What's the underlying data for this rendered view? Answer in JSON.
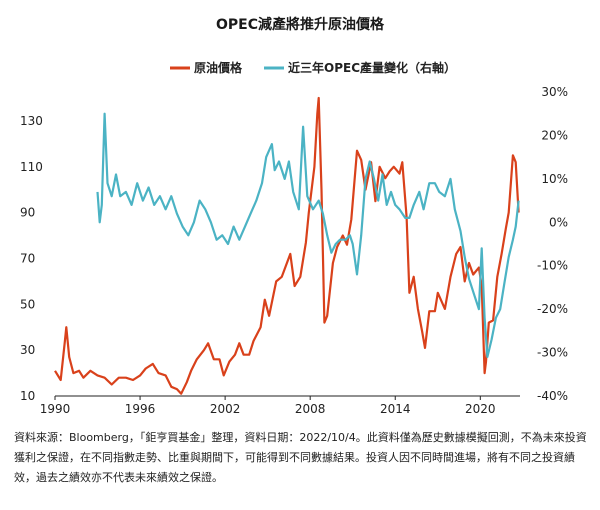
{
  "chart_data": {
    "type": "line",
    "title": "OPEC減產將推升原油價格",
    "legend_placement": "top-center",
    "x_ticks": [
      "1990",
      "1996",
      "2002",
      "2008",
      "2014",
      "2020"
    ],
    "xlim": [
      1990,
      2022.8
    ],
    "y_left": {
      "ticks": [
        "10",
        "30",
        "50",
        "70",
        "90",
        "110",
        "130"
      ],
      "ylim": [
        10,
        140
      ]
    },
    "y_right": {
      "ticks": [
        "-40%",
        "-30%",
        "-20%",
        "-10%",
        "0%",
        "10%",
        "20%",
        "30%"
      ],
      "ylim": [
        -40,
        30
      ]
    },
    "grid": false,
    "series": [
      {
        "name": "原油價格",
        "axis": "left",
        "color": "#d9411b",
        "points": [
          [
            1990.0,
            21
          ],
          [
            1990.4,
            17
          ],
          [
            1990.7,
            34
          ],
          [
            1990.8,
            40
          ],
          [
            1991.0,
            27
          ],
          [
            1991.3,
            20
          ],
          [
            1991.7,
            21
          ],
          [
            1992.0,
            18
          ],
          [
            1992.5,
            21
          ],
          [
            1993.0,
            19
          ],
          [
            1993.5,
            18
          ],
          [
            1994.0,
            15
          ],
          [
            1994.5,
            18
          ],
          [
            1995.0,
            18
          ],
          [
            1995.5,
            17
          ],
          [
            1996.0,
            19
          ],
          [
            1996.4,
            22
          ],
          [
            1996.9,
            24
          ],
          [
            1997.3,
            20
          ],
          [
            1997.8,
            19
          ],
          [
            1998.2,
            14
          ],
          [
            1998.6,
            13
          ],
          [
            1998.9,
            11
          ],
          [
            1999.3,
            16
          ],
          [
            1999.6,
            21
          ],
          [
            2000.0,
            26
          ],
          [
            2000.5,
            30
          ],
          [
            2000.8,
            33
          ],
          [
            2001.2,
            26
          ],
          [
            2001.6,
            26
          ],
          [
            2001.9,
            19
          ],
          [
            2002.3,
            25
          ],
          [
            2002.7,
            28
          ],
          [
            2003.0,
            33
          ],
          [
            2003.3,
            28
          ],
          [
            2003.7,
            28
          ],
          [
            2004.0,
            34
          ],
          [
            2004.5,
            40
          ],
          [
            2004.8,
            52
          ],
          [
            2005.1,
            45
          ],
          [
            2005.6,
            60
          ],
          [
            2006.0,
            62
          ],
          [
            2006.6,
            72
          ],
          [
            2006.9,
            58
          ],
          [
            2007.3,
            62
          ],
          [
            2007.7,
            77
          ],
          [
            2007.9,
            90
          ],
          [
            2008.3,
            110
          ],
          [
            2008.5,
            133
          ],
          [
            2008.6,
            140
          ],
          [
            2008.8,
            100
          ],
          [
            2009.0,
            42
          ],
          [
            2009.2,
            45
          ],
          [
            2009.6,
            68
          ],
          [
            2009.9,
            75
          ],
          [
            2010.3,
            80
          ],
          [
            2010.6,
            76
          ],
          [
            2010.9,
            87
          ],
          [
            2011.3,
            117
          ],
          [
            2011.6,
            113
          ],
          [
            2011.9,
            100
          ],
          [
            2012.3,
            112
          ],
          [
            2012.6,
            95
          ],
          [
            2012.9,
            110
          ],
          [
            2013.3,
            105
          ],
          [
            2013.6,
            108
          ],
          [
            2013.9,
            110
          ],
          [
            2014.3,
            107
          ],
          [
            2014.5,
            112
          ],
          [
            2014.8,
            88
          ],
          [
            2015.0,
            55
          ],
          [
            2015.3,
            62
          ],
          [
            2015.6,
            48
          ],
          [
            2015.9,
            38
          ],
          [
            2016.1,
            31
          ],
          [
            2016.4,
            47
          ],
          [
            2016.8,
            47
          ],
          [
            2017.0,
            55
          ],
          [
            2017.5,
            48
          ],
          [
            2017.9,
            62
          ],
          [
            2018.3,
            72
          ],
          [
            2018.6,
            75
          ],
          [
            2018.9,
            60
          ],
          [
            2019.2,
            68
          ],
          [
            2019.5,
            63
          ],
          [
            2019.9,
            66
          ],
          [
            2020.1,
            58
          ],
          [
            2020.3,
            20
          ],
          [
            2020.4,
            25
          ],
          [
            2020.6,
            42
          ],
          [
            2020.9,
            43
          ],
          [
            2021.2,
            62
          ],
          [
            2021.5,
            72
          ],
          [
            2021.8,
            83
          ],
          [
            2022.0,
            90
          ],
          [
            2022.3,
            115
          ],
          [
            2022.5,
            112
          ],
          [
            2022.7,
            90
          ]
        ]
      },
      {
        "name": "近三年OPEC產量變化（右軸）",
        "axis": "right",
        "color": "#4bb3c4",
        "points": [
          [
            1993.0,
            7
          ],
          [
            1993.15,
            0
          ],
          [
            1993.3,
            4
          ],
          [
            1993.5,
            25
          ],
          [
            1993.7,
            9
          ],
          [
            1994.0,
            6
          ],
          [
            1994.3,
            11
          ],
          [
            1994.6,
            6
          ],
          [
            1995.0,
            7
          ],
          [
            1995.4,
            4
          ],
          [
            1995.8,
            9
          ],
          [
            1996.2,
            5
          ],
          [
            1996.6,
            8
          ],
          [
            1997.0,
            4
          ],
          [
            1997.4,
            6
          ],
          [
            1997.8,
            3
          ],
          [
            1998.2,
            6
          ],
          [
            1998.6,
            2
          ],
          [
            1999.0,
            -1
          ],
          [
            1999.4,
            -3
          ],
          [
            1999.8,
            0
          ],
          [
            2000.2,
            5
          ],
          [
            2000.6,
            3
          ],
          [
            2001.0,
            0
          ],
          [
            2001.4,
            -4
          ],
          [
            2001.8,
            -3
          ],
          [
            2002.2,
            -5
          ],
          [
            2002.6,
            -1
          ],
          [
            2003.0,
            -4
          ],
          [
            2003.4,
            -1
          ],
          [
            2003.8,
            2
          ],
          [
            2004.2,
            5
          ],
          [
            2004.6,
            9
          ],
          [
            2004.9,
            15
          ],
          [
            2005.3,
            18
          ],
          [
            2005.5,
            12
          ],
          [
            2005.8,
            14
          ],
          [
            2006.2,
            10
          ],
          [
            2006.5,
            14
          ],
          [
            2006.8,
            7
          ],
          [
            2007.2,
            3
          ],
          [
            2007.5,
            22
          ],
          [
            2007.8,
            6
          ],
          [
            2008.2,
            3
          ],
          [
            2008.6,
            5
          ],
          [
            2008.9,
            2
          ],
          [
            2009.2,
            -3
          ],
          [
            2009.5,
            -7
          ],
          [
            2009.8,
            -5
          ],
          [
            2010.1,
            -4
          ],
          [
            2010.5,
            -4
          ],
          [
            2010.8,
            -3
          ],
          [
            2011.0,
            -5
          ],
          [
            2011.3,
            -12
          ],
          [
            2011.6,
            -3
          ],
          [
            2011.9,
            10
          ],
          [
            2012.2,
            14
          ],
          [
            2012.5,
            10
          ],
          [
            2012.8,
            5
          ],
          [
            2013.1,
            11
          ],
          [
            2013.4,
            4
          ],
          [
            2013.7,
            7
          ],
          [
            2014.0,
            4
          ],
          [
            2014.3,
            3
          ],
          [
            2014.7,
            1
          ],
          [
            2015.0,
            1
          ],
          [
            2015.3,
            4
          ],
          [
            2015.7,
            7
          ],
          [
            2016.0,
            3
          ],
          [
            2016.4,
            9
          ],
          [
            2016.8,
            9
          ],
          [
            2017.1,
            7
          ],
          [
            2017.5,
            6
          ],
          [
            2017.9,
            10
          ],
          [
            2018.2,
            3
          ],
          [
            2018.6,
            -2
          ],
          [
            2018.9,
            -8
          ],
          [
            2019.2,
            -13
          ],
          [
            2019.6,
            -17
          ],
          [
            2019.9,
            -20
          ],
          [
            2020.1,
            -6
          ],
          [
            2020.3,
            -22
          ],
          [
            2020.5,
            -31
          ],
          [
            2020.8,
            -27
          ],
          [
            2021.1,
            -22
          ],
          [
            2021.4,
            -20
          ],
          [
            2021.7,
            -14
          ],
          [
            2022.0,
            -8
          ],
          [
            2022.3,
            -4
          ],
          [
            2022.5,
            -1
          ],
          [
            2022.7,
            5
          ]
        ]
      }
    ]
  },
  "footnote": "資料來源：Bloomberg，「鉅亨買基金」整理，資料日期：2022/10/4。此資料僅為歷史數據模擬回測，不為未來投資獲利之保證，在不同指數走勢、比重與期間下，可能得到不同數據結果。投資人因不同時間進場，將有不同之投資績效，過去之績效亦不代表未來績效之保證。"
}
